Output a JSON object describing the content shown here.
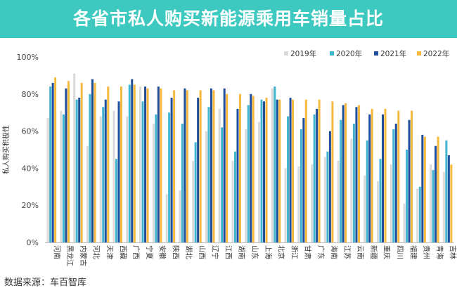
{
  "title": "各省市私人购买新能源乘用车销量占比",
  "source": "数据来源：车百智库",
  "chart_data": {
    "type": "bar",
    "ylabel": "私人购买积极性",
    "ylim": [
      0,
      100
    ],
    "yticks": [
      "0%",
      "20%",
      "40%",
      "60%",
      "80%",
      "100%"
    ],
    "grid": false,
    "legend_position": "top-right",
    "categories": [
      "河南",
      "黑龙江",
      "内蒙古",
      "河北",
      "天津",
      "西藏",
      "广西",
      "宁夏",
      "安徽",
      "陕西",
      "湖北",
      "山西",
      "辽宁",
      "江西",
      "湖南",
      "山东",
      "上海",
      "北京",
      "浙江",
      "甘肃",
      "广东",
      "海南",
      "江苏",
      "云南",
      "新疆",
      "重庆",
      "四川",
      "福建",
      "贵州",
      "青海",
      "吉林"
    ],
    "series": [
      {
        "name": "2019年",
        "color": "#d9d9d9",
        "values": [
          67,
          71,
          91,
          52,
          68,
          71,
          68,
          84,
          64,
          26,
          28,
          44,
          60,
          72,
          44,
          61,
          65,
          83,
          40,
          41,
          42,
          46,
          44,
          56,
          36,
          33,
          42,
          21,
          29,
          42,
          38
        ]
      },
      {
        "name": "2020年",
        "color": "#41b5cf",
        "values": [
          84,
          69,
          77,
          80,
          73,
          45,
          85,
          76,
          69,
          70,
          64,
          54,
          73,
          62,
          49,
          74,
          77,
          84,
          68,
          61,
          69,
          49,
          66,
          64,
          55,
          45,
          61,
          50,
          30,
          39,
          55
        ]
      },
      {
        "name": "2021年",
        "color": "#1f4e9a",
        "values": [
          86,
          83,
          78,
          88,
          77,
          76,
          88,
          84,
          84,
          78,
          83,
          78,
          83,
          83,
          72,
          80,
          76,
          77,
          78,
          67,
          72,
          60,
          74,
          73,
          69,
          69,
          64,
          66,
          58,
          52,
          47
        ]
      },
      {
        "name": "2022年",
        "color": "#f7b93d",
        "values": [
          89,
          87,
          86,
          86,
          84,
          84,
          85,
          83,
          83,
          82,
          82,
          82,
          82,
          80,
          80,
          79,
          78,
          77,
          77,
          77,
          77,
          76,
          75,
          74,
          72,
          72,
          71,
          71,
          57,
          57,
          42
        ]
      }
    ]
  }
}
